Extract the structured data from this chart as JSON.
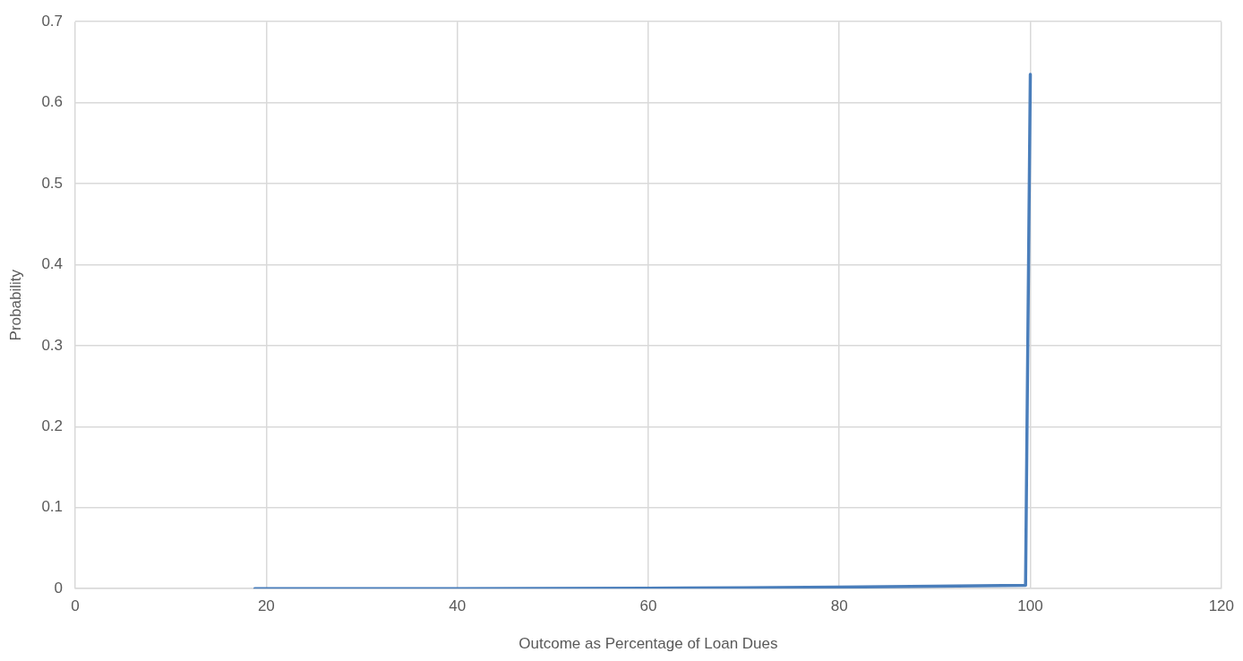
{
  "chart_data": {
    "type": "line",
    "xlabel": "Outcome as Percentage of Loan Dues",
    "ylabel": "Probability",
    "x": [
      18.8,
      40,
      60,
      70,
      80,
      90,
      99.5,
      100
    ],
    "series": [
      {
        "color": "#4a7ebb",
        "values": [
          0,
          0,
          0.0005,
          0.001,
          0.002,
          0.003,
          0.004,
          0.635
        ]
      }
    ],
    "xlim": [
      0,
      120
    ],
    "xticks": [
      0,
      20,
      40,
      60,
      80,
      100,
      120
    ],
    "ylim": [
      0,
      0.7
    ],
    "yticks": [
      0,
      0.1,
      0.2,
      0.3,
      0.4,
      0.5,
      0.6,
      0.7
    ],
    "grid": true,
    "legend": false,
    "marker": "none",
    "line_style": "solid"
  }
}
